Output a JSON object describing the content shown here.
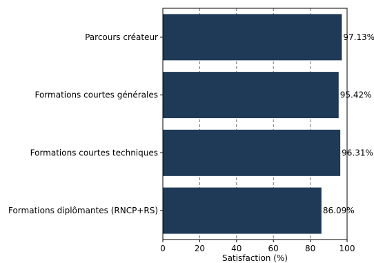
{
  "chart_data": {
    "type": "bar",
    "orientation": "horizontal",
    "categories": [
      "Formations diplômantes (RNCP+RS)",
      "Formations courtes techniques",
      "Formations courtes générales",
      "Parcours créateur"
    ],
    "values": [
      86.09,
      96.31,
      95.42,
      97.13
    ],
    "data_labels": [
      "86.09%",
      "96.31%",
      "95.42%",
      "97.13%"
    ],
    "xlabel": "Satisfaction (%)",
    "ylabel": "",
    "xlim": [
      0,
      100
    ],
    "x_ticks": [
      0,
      20,
      40,
      60,
      80,
      100
    ],
    "grid": "x-axis dashed",
    "legend": "none",
    "bar_color": "#1f3a57"
  }
}
